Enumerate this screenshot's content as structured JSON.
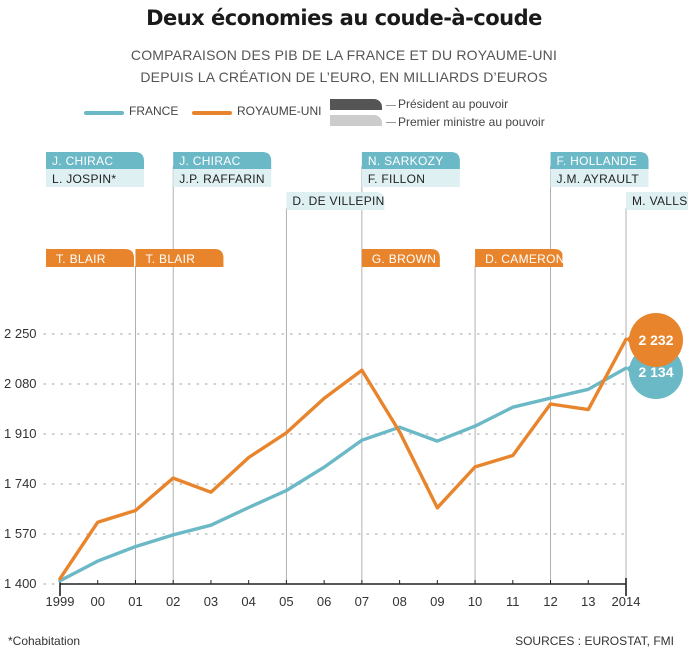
{
  "title": "Deux économies au coude-à-coude",
  "subtitle_line1": "COMPARAISON DES PIB DE LA FRANCE ET DU ROYAUME-UNI",
  "subtitle_line2": "DEPUIS LA CRÉATION DE L’EURO, EN MILLIARDS D’EUROS",
  "legend": {
    "france": "FRANCE",
    "uk": "ROYAUME-UNI",
    "president": "Président au pouvoir",
    "prime_minister": "Premier ministre au pouvoir"
  },
  "colors": {
    "france": "#6bb8c6",
    "uk": "#e8852c",
    "president_swatch": "#555555",
    "pm_swatch": "#cccccc",
    "president_label_bg": "#6bb8c6",
    "pm_label_bg": "#dff0f2",
    "uk_label_bg": "#e8852c"
  },
  "footnote": "*Cohabitation",
  "sources": "SOURCES : EUROSTAT, FMI",
  "chart_data": {
    "type": "line",
    "x": [
      "1999",
      "00",
      "01",
      "02",
      "03",
      "04",
      "05",
      "06",
      "07",
      "08",
      "09",
      "10",
      "11",
      "12",
      "13",
      "2014"
    ],
    "series": [
      {
        "name": "FRANCE",
        "values": [
          1411,
          1478,
          1527,
          1567,
          1600,
          1660,
          1718,
          1797,
          1889,
          1933,
          1886,
          1937,
          2001,
          2032,
          2062,
          2134
        ]
      },
      {
        "name": "ROYAUME-UNI",
        "values": [
          1418,
          1610,
          1650,
          1760,
          1712,
          1830,
          1914,
          2031,
          2127,
          1917,
          1659,
          1798,
          1837,
          2012,
          1993,
          2232
        ]
      }
    ],
    "yticks": [
      1400,
      1570,
      1740,
      1910,
      2080,
      2250
    ],
    "ytick_labels": [
      "1 400",
      "1 570",
      "1 740",
      "1 910",
      "2 080",
      "2 250"
    ],
    "ylim": [
      1400,
      2250
    ],
    "end_labels": {
      "uk": "2 232",
      "france": "2 134"
    },
    "france_leaders": [
      {
        "president": "J. CHIRAC",
        "pm": "L. JOSPIN*",
        "x": "1999"
      },
      {
        "president": "J. CHIRAC",
        "pm": "J.P. RAFFARIN",
        "x": "02"
      },
      {
        "president": "",
        "pm": "D. DE VILLEPIN",
        "x": "05"
      },
      {
        "president": "N. SARKOZY",
        "pm": "F. FILLON",
        "x": "07"
      },
      {
        "president": "F. HOLLANDE",
        "pm": "J.M. AYRAULT",
        "x": "12"
      },
      {
        "president": "",
        "pm": "M. VALLS",
        "x": "2014"
      }
    ],
    "uk_leaders": [
      {
        "name": "T. BLAIR",
        "x": "1999"
      },
      {
        "name": "T. BLAIR",
        "x": "01"
      },
      {
        "name": "G. BROWN",
        "x": "07"
      },
      {
        "name": "D. CAMERON",
        "x": "10"
      }
    ]
  }
}
